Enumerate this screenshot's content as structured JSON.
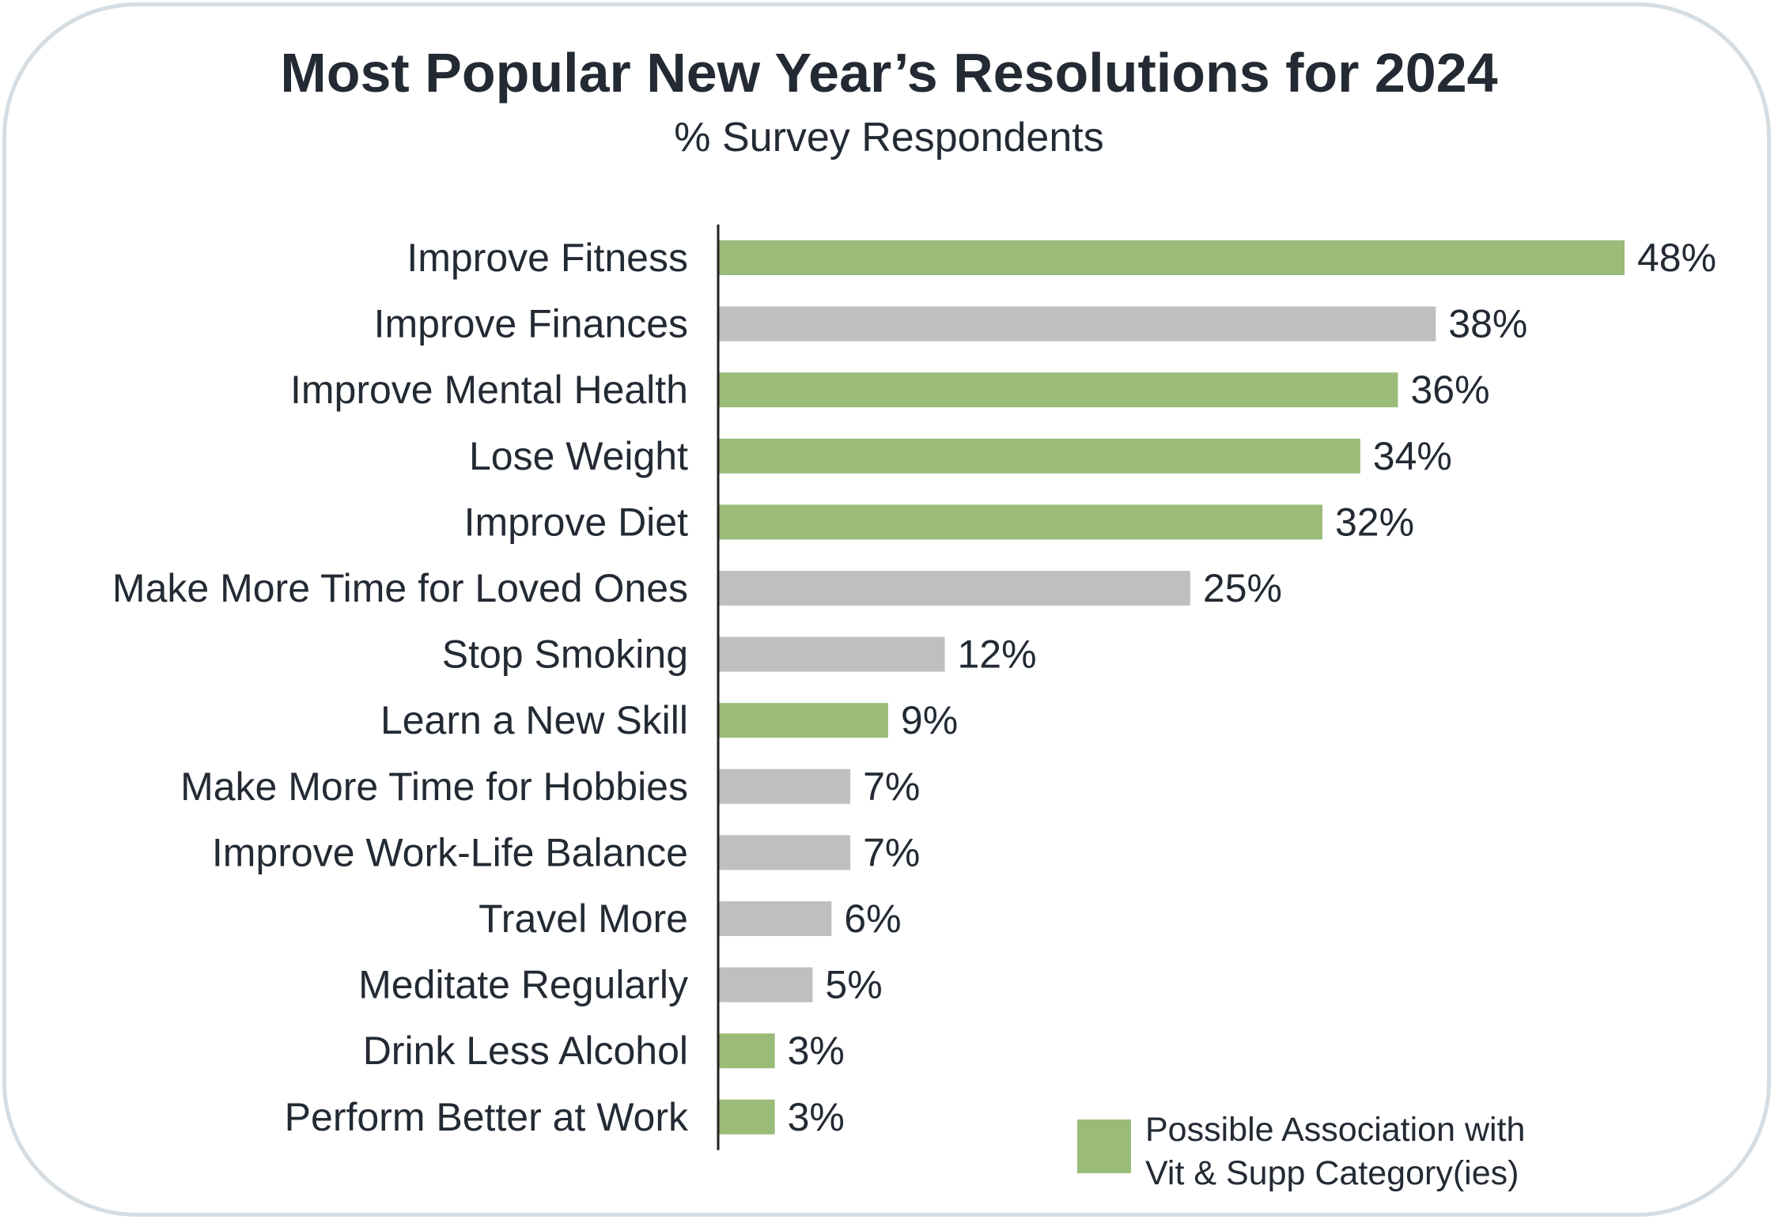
{
  "chart_data": {
    "type": "bar",
    "orientation": "horizontal",
    "title": "Most Popular New Year’s Resolutions for 2024",
    "subtitle": "% Survey Respondents",
    "xlabel": "",
    "ylabel": "",
    "xlim": [
      0,
      48
    ],
    "grid": false,
    "value_suffix": "%",
    "categories": [
      "Improve Fitness",
      "Improve Finances",
      "Improve Mental Health",
      "Lose Weight",
      "Improve Diet",
      "Make More Time for Loved Ones",
      "Stop Smoking",
      "Learn a New Skill",
      "Make More Time for Hobbies",
      "Improve Work-Life Balance",
      "Travel More",
      "Meditate Regularly",
      "Drink Less Alcohol",
      "Perform Better at Work"
    ],
    "values": [
      48,
      38,
      36,
      34,
      32,
      25,
      12,
      9,
      7,
      7,
      6,
      5,
      3,
      3
    ],
    "data_labels": [
      "48%",
      "38%",
      "36%",
      "34%",
      "32%",
      "25%",
      "12%",
      "9%",
      "7%",
      "7%",
      "6%",
      "5%",
      "3%",
      "3%"
    ],
    "associated": [
      true,
      false,
      true,
      true,
      true,
      false,
      false,
      true,
      false,
      false,
      false,
      false,
      true,
      true
    ],
    "legend": {
      "placement": "bottom-right",
      "label": "Possible Association with\nVit & Supp Category(ies)"
    }
  },
  "colors": {
    "associated": "#9bbb78",
    "other": "#bfbfbf",
    "frame": "#d5dde2",
    "text": "#232a33",
    "axis": "#222222"
  }
}
